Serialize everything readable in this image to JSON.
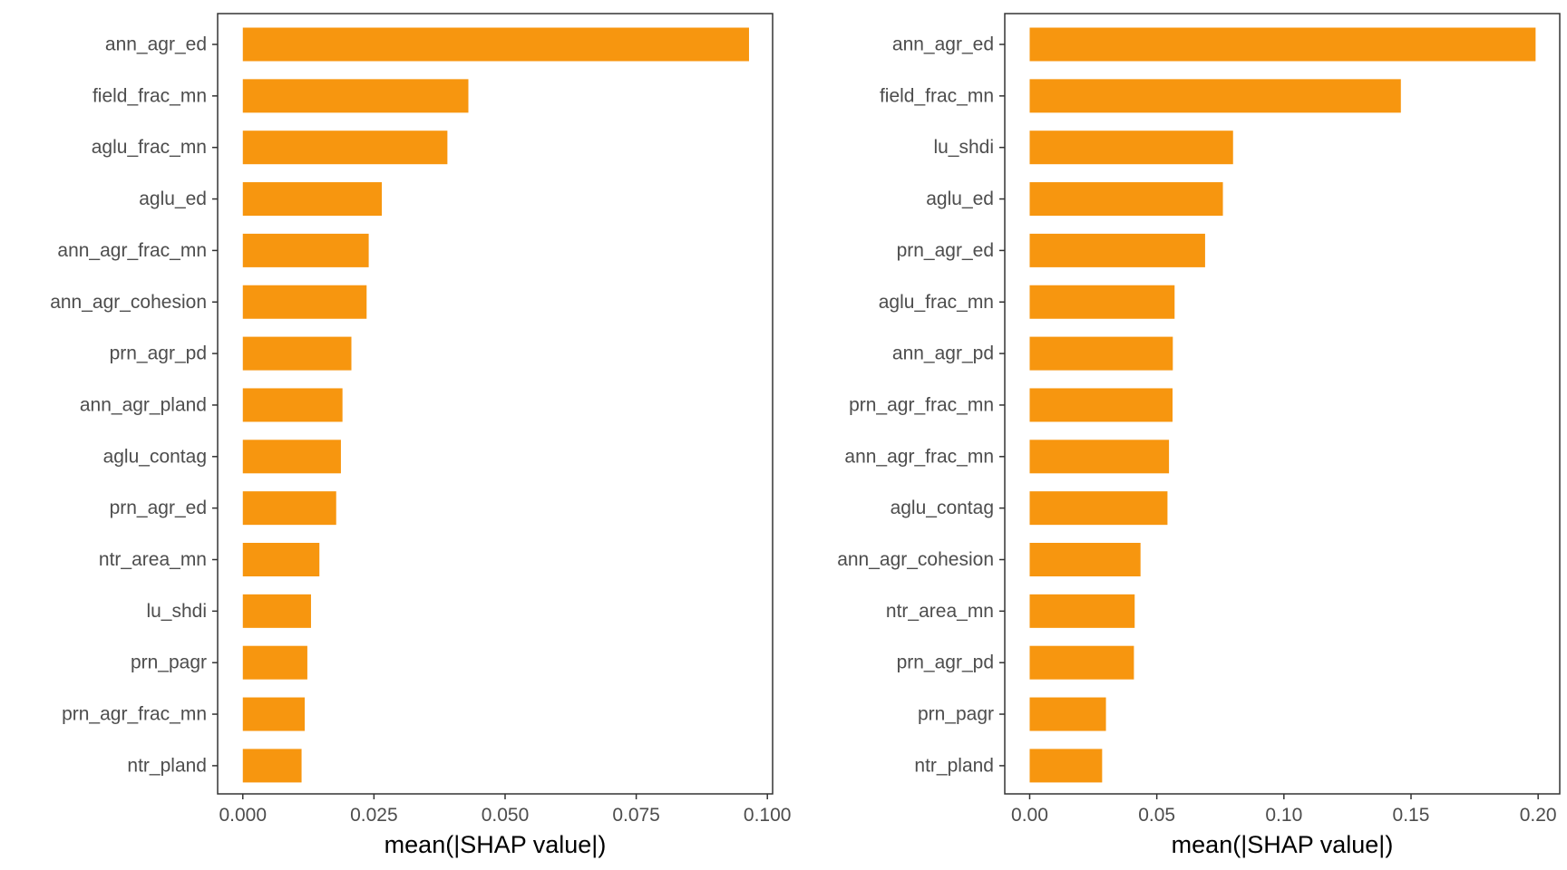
{
  "colors": {
    "bar": "#f7960f",
    "frame": "#333333",
    "tick": "#333333",
    "tick_label": "#4d4d4d"
  },
  "chart_data": [
    {
      "type": "bar",
      "orientation": "horizontal",
      "categories": [
        "ann_agr_ed",
        "field_frac_mn",
        "aglu_frac_mn",
        "aglu_ed",
        "ann_agr_frac_mn",
        "ann_agr_cohesion",
        "prn_agr_pd",
        "ann_agr_pland",
        "aglu_contag",
        "prn_agr_ed",
        "ntr_area_mn",
        "lu_shdi",
        "prn_pagr",
        "prn_agr_frac_mn",
        "ntr_pland"
      ],
      "values": [
        0.0965,
        0.043,
        0.039,
        0.0265,
        0.024,
        0.0236,
        0.0207,
        0.019,
        0.0187,
        0.0178,
        0.0146,
        0.013,
        0.0123,
        0.0118,
        0.0112
      ],
      "xlabel": "mean(|SHAP value|)",
      "xlim": [
        -0.0048,
        0.101
      ],
      "xticks": [
        0,
        0.025,
        0.05,
        0.075,
        0.1
      ],
      "xtick_labels": [
        "0.000",
        "0.025",
        "0.050",
        "0.075",
        "0.100"
      ],
      "grid": false
    },
    {
      "type": "bar",
      "orientation": "horizontal",
      "categories": [
        "ann_agr_ed",
        "field_frac_mn",
        "lu_shdi",
        "aglu_ed",
        "prn_agr_ed",
        "aglu_frac_mn",
        "ann_agr_pd",
        "prn_agr_frac_mn",
        "ann_agr_frac_mn",
        "aglu_contag",
        "ann_agr_cohesion",
        "ntr_area_mn",
        "prn_agr_pd",
        "prn_pagr",
        "ntr_pland"
      ],
      "values": [
        0.199,
        0.146,
        0.08,
        0.076,
        0.069,
        0.057,
        0.0563,
        0.0562,
        0.0548,
        0.0542,
        0.0436,
        0.0413,
        0.041,
        0.03,
        0.0285
      ],
      "xlabel": "mean(|SHAP value|)",
      "xlim": [
        -0.0098,
        0.2085
      ],
      "xticks": [
        0,
        0.05,
        0.1,
        0.15,
        0.2
      ],
      "xtick_labels": [
        "0.00",
        "0.05",
        "0.10",
        "0.15",
        "0.20"
      ],
      "grid": false
    }
  ]
}
